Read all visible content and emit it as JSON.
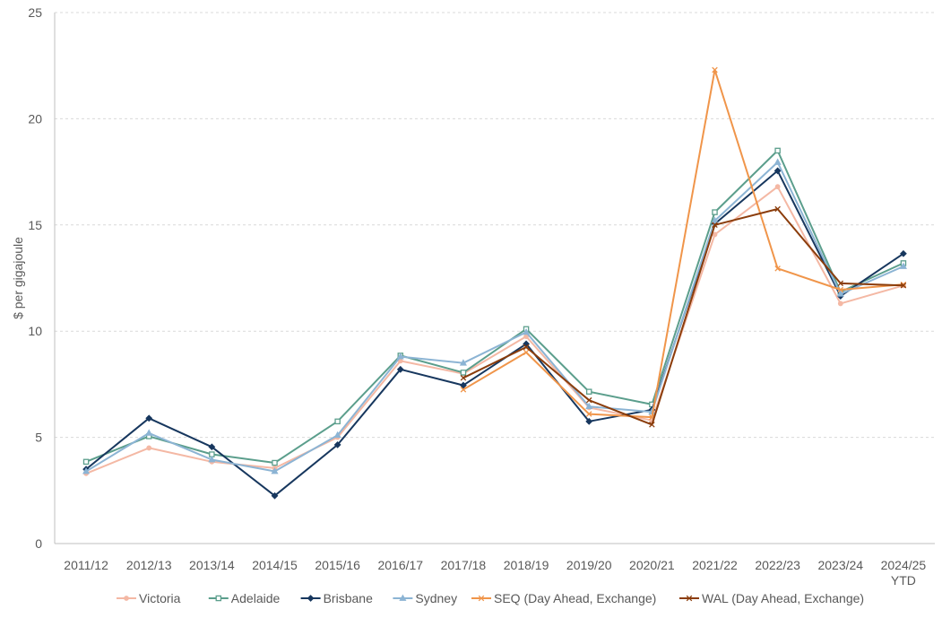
{
  "chart_data": {
    "type": "line",
    "ylabel": "$ per gigajoule",
    "ylim": [
      0,
      25
    ],
    "yticks": [
      0,
      5,
      10,
      15,
      20,
      25
    ],
    "grid": true,
    "legend_position": "bottom",
    "categories": [
      "2011/12",
      "2012/13",
      "2013/14",
      "2014/15",
      "2015/16",
      "2016/17",
      "2017/18",
      "2018/19",
      "2019/20",
      "2020/21",
      "2021/22",
      "2022/23",
      "2023/24",
      "2024/25 YTD"
    ],
    "category_lines": [
      [
        "2011/12"
      ],
      [
        "2012/13"
      ],
      [
        "2013/14"
      ],
      [
        "2014/15"
      ],
      [
        "2015/16"
      ],
      [
        "2016/17"
      ],
      [
        "2017/18"
      ],
      [
        "2018/19"
      ],
      [
        "2019/20"
      ],
      [
        "2020/21"
      ],
      [
        "2021/22"
      ],
      [
        "2022/23"
      ],
      [
        "2023/24"
      ],
      [
        "2024/25",
        "YTD"
      ]
    ],
    "series": [
      {
        "name": "Victoria",
        "color": "#f4b8a4",
        "marker": "circle",
        "values": [
          3.3,
          4.5,
          3.85,
          3.55,
          5.0,
          8.6,
          8.0,
          9.75,
          6.4,
          5.8,
          14.55,
          16.8,
          11.3,
          12.15
        ]
      },
      {
        "name": "Adelaide",
        "color": "#5b9e8c",
        "marker": "square",
        "values": [
          3.85,
          5.05,
          4.2,
          3.8,
          5.75,
          8.85,
          8.05,
          10.1,
          7.15,
          6.55,
          15.6,
          18.5,
          11.85,
          13.2
        ]
      },
      {
        "name": "Brisbane",
        "color": "#17375e",
        "marker": "diamond",
        "values": [
          3.5,
          5.9,
          4.55,
          2.25,
          4.65,
          8.2,
          7.45,
          9.4,
          5.75,
          6.3,
          15.05,
          17.55,
          11.65,
          13.65
        ]
      },
      {
        "name": "Sydney",
        "color": "#8cb4d4",
        "marker": "triangle",
        "values": [
          3.4,
          5.2,
          3.95,
          3.4,
          5.1,
          8.8,
          8.5,
          9.95,
          6.45,
          6.2,
          15.2,
          17.95,
          11.75,
          13.05
        ]
      },
      {
        "name": "SEQ (Day Ahead, Exchange)",
        "color": "#f0954a",
        "marker": "x",
        "values": [
          null,
          null,
          null,
          null,
          null,
          null,
          7.25,
          9.0,
          6.1,
          5.95,
          22.3,
          12.95,
          11.95,
          12.2
        ]
      },
      {
        "name": "WAL (Day Ahead, Exchange)",
        "color": "#8b3d0c",
        "marker": "x",
        "values": [
          null,
          null,
          null,
          null,
          null,
          null,
          7.8,
          9.25,
          6.75,
          5.6,
          15.0,
          15.75,
          12.25,
          12.15
        ]
      }
    ]
  }
}
